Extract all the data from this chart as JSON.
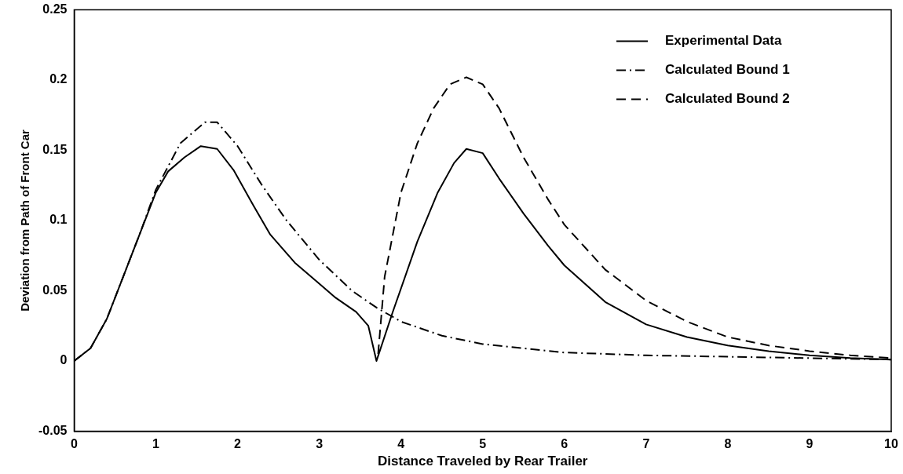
{
  "chart_data": {
    "type": "line",
    "xlabel": "Distance Traveled by Rear Trailer",
    "ylabel": "Deviation from Path of Front Car",
    "xlim": [
      0,
      10
    ],
    "xticks": [
      0,
      1,
      2,
      3,
      4,
      5,
      6,
      7,
      8,
      9,
      10
    ],
    "ylim": [
      -0.05,
      0.25
    ],
    "yticks": [
      -0.05,
      0,
      0.05,
      0.1,
      0.15,
      0.2,
      0.25
    ],
    "grid": false,
    "legend": "top right",
    "marker": "none",
    "series": [
      {
        "name": "Experimental Data",
        "color": "#000000",
        "line_style": "solid",
        "x": [
          0,
          0.2,
          0.4,
          0.6,
          0.8,
          1.0,
          1.15,
          1.35,
          1.55,
          1.75,
          1.95,
          2.2,
          2.4,
          2.7,
          3.0,
          3.2,
          3.45,
          3.6,
          3.7,
          3.9,
          4.2,
          4.45,
          4.65,
          4.8,
          5.0,
          5.2,
          5.5,
          5.8,
          6.0,
          6.5,
          7.0,
          7.5,
          8.0,
          8.5,
          9.0,
          9.5,
          10.0
        ],
        "values": [
          0,
          0.009,
          0.03,
          0.06,
          0.09,
          0.12,
          0.135,
          0.145,
          0.153,
          0.151,
          0.136,
          0.11,
          0.09,
          0.07,
          0.055,
          0.045,
          0.035,
          0.025,
          0.0,
          0.035,
          0.085,
          0.12,
          0.141,
          0.151,
          0.148,
          0.13,
          0.105,
          0.082,
          0.068,
          0.042,
          0.026,
          0.017,
          0.011,
          0.007,
          0.004,
          0.002,
          0.001
        ]
      },
      {
        "name": "Calculated Bound 1",
        "color": "#000000",
        "line_style": "dashdot",
        "x": [
          0,
          0.2,
          0.4,
          0.6,
          0.8,
          1.0,
          1.3,
          1.6,
          1.75,
          2.0,
          2.3,
          2.6,
          3.0,
          3.4,
          3.7,
          4.0,
          4.5,
          5.0,
          5.5,
          6.0,
          7.0,
          8.0,
          9.0,
          10.0
        ],
        "values": [
          0,
          0.009,
          0.03,
          0.06,
          0.09,
          0.122,
          0.155,
          0.17,
          0.17,
          0.153,
          0.125,
          0.1,
          0.072,
          0.05,
          0.038,
          0.028,
          0.018,
          0.012,
          0.009,
          0.006,
          0.004,
          0.003,
          0.002,
          0.001
        ]
      },
      {
        "name": "Calculated Bound 2",
        "color": "#000000",
        "line_style": "dashed",
        "x": [
          3.72,
          3.8,
          3.9,
          4.0,
          4.2,
          4.4,
          4.6,
          4.8,
          5.0,
          5.2,
          5.5,
          5.8,
          6.0,
          6.5,
          7.0,
          7.5,
          8.0,
          8.5,
          9.0,
          9.5,
          10.0
        ],
        "values": [
          0.005,
          0.06,
          0.09,
          0.12,
          0.155,
          0.18,
          0.197,
          0.202,
          0.197,
          0.18,
          0.145,
          0.115,
          0.097,
          0.065,
          0.043,
          0.028,
          0.017,
          0.011,
          0.007,
          0.004,
          0.002
        ]
      }
    ]
  }
}
